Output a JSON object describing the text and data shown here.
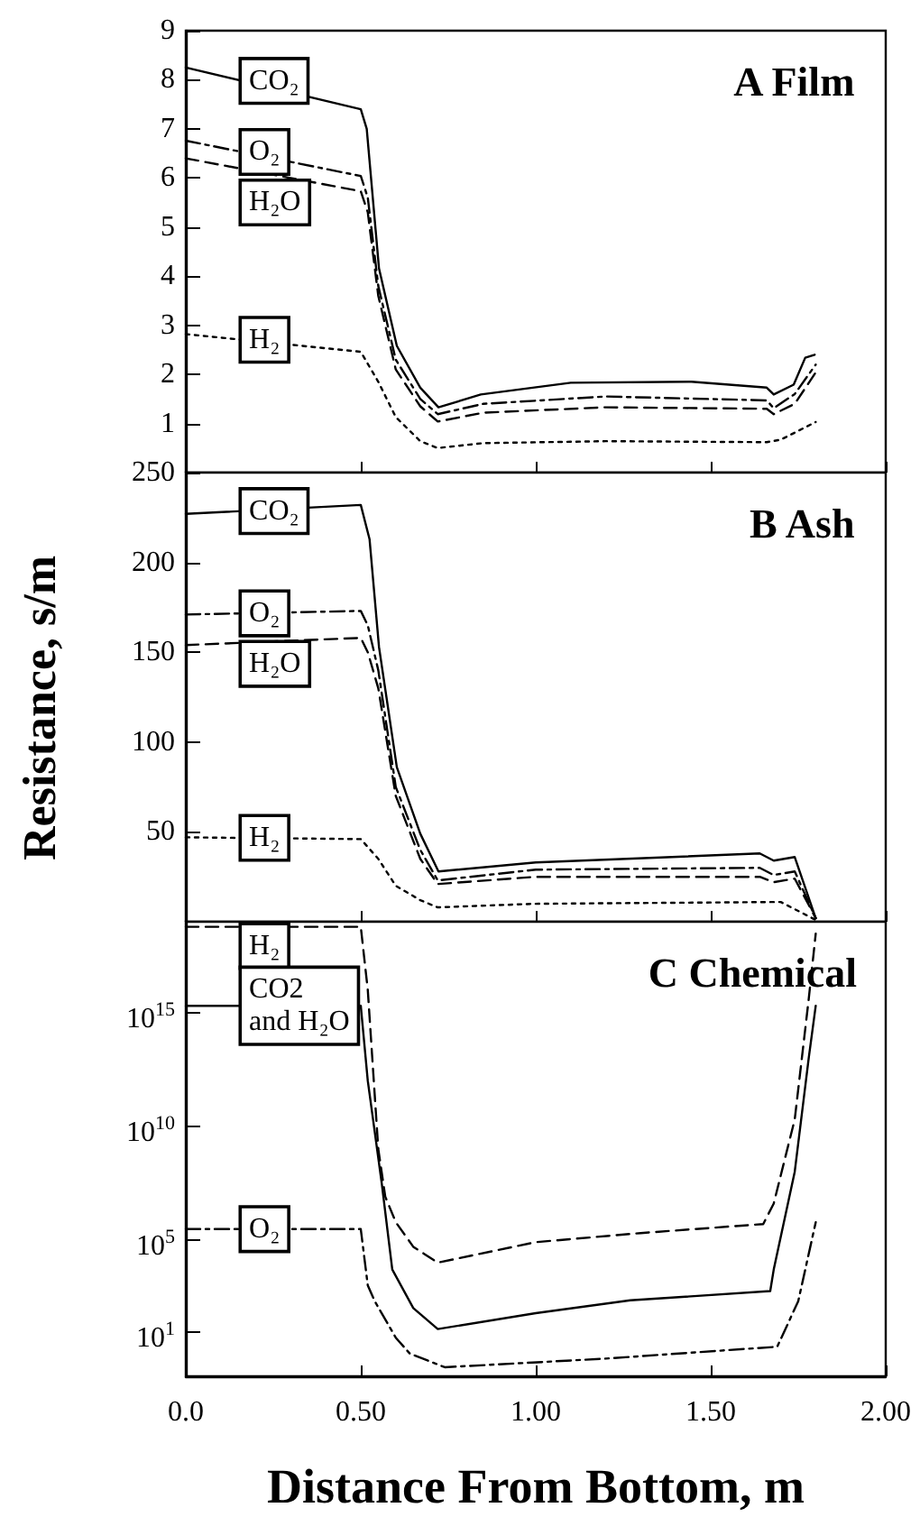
{
  "chart_data": [
    {
      "type": "line",
      "title": "A Film",
      "xlim": [
        0,
        2
      ],
      "xticks": [
        0,
        0.5,
        1,
        1.5,
        2
      ],
      "ylim": [
        0,
        9
      ],
      "yticks": [
        1,
        2,
        3,
        4,
        5,
        6,
        7,
        8,
        9
      ],
      "tick_labels": "y",
      "marker": "none",
      "grid": false,
      "series": [
        {
          "name": "CO₂",
          "color": "#000000",
          "line_style": "solid",
          "x": [
            0,
            0.5,
            0.517,
            0.552,
            0.603,
            0.67,
            0.722,
            0.843,
            1.1,
            1.445,
            1.66,
            1.68,
            1.737,
            1.77,
            1.797
          ],
          "values": [
            8.25,
            7.4,
            7.0,
            4.16,
            2.58,
            1.73,
            1.33,
            1.59,
            1.83,
            1.85,
            1.73,
            1.59,
            1.79,
            2.34,
            2.4
          ]
        },
        {
          "name": "O₂",
          "color": "#000000",
          "line_style": "dashdot",
          "x": [
            0,
            0.5,
            0.52,
            0.55,
            0.6,
            0.67,
            0.72,
            0.85,
            1.2,
            1.66,
            1.68,
            1.74,
            1.8
          ],
          "values": [
            6.76,
            6.04,
            5.6,
            3.8,
            2.3,
            1.5,
            1.19,
            1.4,
            1.55,
            1.47,
            1.31,
            1.6,
            2.2
          ]
        },
        {
          "name": "H₂O",
          "color": "#000000",
          "line_style": "dashed",
          "x": [
            0,
            0.5,
            0.52,
            0.55,
            0.6,
            0.67,
            0.72,
            0.85,
            1.2,
            1.66,
            1.68,
            1.74,
            1.8
          ],
          "values": [
            6.4,
            5.73,
            5.3,
            3.6,
            2.1,
            1.35,
            1.04,
            1.22,
            1.33,
            1.3,
            1.19,
            1.4,
            2.04
          ]
        },
        {
          "name": "H₂",
          "color": "#000000",
          "line_style": "dotted",
          "x": [
            0,
            0.5,
            0.55,
            0.6,
            0.67,
            0.72,
            0.85,
            1.2,
            1.66,
            1.7,
            1.8
          ],
          "values": [
            2.82,
            2.46,
            1.85,
            1.13,
            0.64,
            0.5,
            0.6,
            0.64,
            0.62,
            0.67,
            1.03
          ]
        }
      ]
    },
    {
      "type": "line",
      "title": "B Ash",
      "ylabel": "Resistance, s/m",
      "xlim": [
        0,
        2
      ],
      "xticks": [
        0,
        0.5,
        1,
        1.5,
        2
      ],
      "ylim": [
        0,
        250
      ],
      "yticks": [
        50,
        100,
        150,
        200,
        250
      ],
      "tick_labels": "y",
      "marker": "none",
      "grid": false,
      "series": [
        {
          "name": "CO₂",
          "color": "#000000",
          "line_style": "solid",
          "x": [
            0,
            0.5,
            0.525,
            0.552,
            0.603,
            0.67,
            0.722,
            1.0,
            1.64,
            1.68,
            1.74,
            1.8
          ],
          "values": [
            227,
            232,
            213,
            153,
            86,
            49,
            28,
            33,
            38,
            34,
            36,
            2
          ]
        },
        {
          "name": "O₂",
          "color": "#000000",
          "line_style": "dashdot",
          "x": [
            0,
            0.5,
            0.52,
            0.55,
            0.6,
            0.67,
            0.72,
            1.0,
            1.64,
            1.68,
            1.74,
            1.8
          ],
          "values": [
            171,
            173,
            165,
            140,
            75,
            40,
            23,
            29,
            30,
            26,
            28,
            2
          ]
        },
        {
          "name": "H₂O",
          "color": "#000000",
          "line_style": "dashed",
          "x": [
            0,
            0.5,
            0.52,
            0.55,
            0.6,
            0.67,
            0.72,
            1.0,
            1.64,
            1.68,
            1.74,
            1.8
          ],
          "values": [
            154,
            158,
            150,
            130,
            70,
            35,
            21,
            25,
            25,
            22,
            24,
            2
          ]
        },
        {
          "name": "H₂",
          "color": "#000000",
          "line_style": "dotted",
          "x": [
            0,
            0.5,
            0.55,
            0.6,
            0.67,
            0.72,
            1.0,
            1.7,
            1.8
          ],
          "values": [
            47,
            46,
            35,
            20,
            12,
            8,
            10,
            11,
            1
          ]
        }
      ]
    },
    {
      "type": "line",
      "title": "C Chemical",
      "xlabel": "Distance From Bottom, m",
      "log": "y",
      "xlim": [
        0,
        2
      ],
      "xticks": [
        {
          "value": 0,
          "label": "0.0"
        },
        {
          "value": 0.5,
          "label": "0.50"
        },
        {
          "value": 1,
          "label": "1.00"
        },
        {
          "value": 1.5,
          "label": "1.50"
        },
        {
          "value": 2,
          "label": "2.00"
        }
      ],
      "ylim": [
        0.1,
        1e+19
      ],
      "yticks": [
        {
          "value": 10,
          "label": "10$^{1}$"
        },
        {
          "value": 100000,
          "label": "10$^{5}$"
        },
        {
          "value": 10000000000,
          "label": "10$^{10}$"
        },
        {
          "value": 1000000000000000.0,
          "label": "10$^{15}$"
        }
      ],
      "marker": "none",
      "grid": false,
      "series": [
        {
          "name": "H₂",
          "color": "#000000",
          "line_style": "dashed",
          "x": [
            0,
            0.5,
            0.52,
            0.55,
            0.57,
            0.6,
            0.65,
            0.72,
            1.0,
            1.3,
            1.65,
            1.68,
            1.74,
            1.78,
            1.8
          ],
          "values": [
            6e+18,
            6e+18,
            1e+16,
            1000000000.0,
            8000000.0,
            600000.0,
            50000.0,
            10000.0,
            80000.0,
            200000.0,
            500000.0,
            4000000.0,
            20000000000.0,
            4000000000000000.0,
            3e+18
          ]
        },
        {
          "name": "CO2 and H₂O",
          "color": "#000000",
          "line_style": "solid",
          "x": [
            0,
            0.5,
            0.52,
            0.56,
            0.59,
            0.65,
            0.72,
            1.0,
            1.27,
            1.67,
            1.68,
            1.74,
            1.78,
            1.8
          ],
          "values": [
            2000000000000000.0,
            2000000000000000.0,
            1000000000000.0,
            30000000.0,
            5000,
            100,
            12,
            60,
            220,
            560,
            5000,
            100000000.0,
            10000000000000.0,
            2000000000000000.0
          ]
        },
        {
          "name": "O₂",
          "color": "#000000",
          "line_style": "dashdot",
          "x": [
            0,
            0.5,
            0.52,
            0.54,
            0.6,
            0.64,
            0.74,
            1.2,
            1.69,
            1.75,
            1.8
          ],
          "values": [
            300000.0,
            300000.0,
            1000,
            200,
            5,
            1,
            0.25,
            0.6,
            2,
            200,
            600000.0
          ]
        }
      ]
    }
  ]
}
